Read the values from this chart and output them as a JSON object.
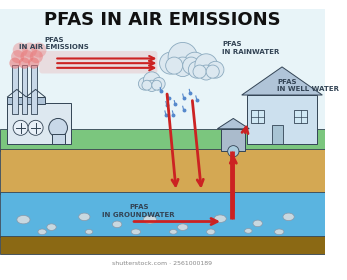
{
  "title": "PFAS IN AIR EMISSIONS",
  "title_fontsize": 13,
  "title_fontweight": "bold",
  "bg_color": "#ffffff",
  "labels": {
    "air_emissions": "PFAS\nIN AIR EMISSIONS",
    "rainwater": "PFAS\nIN RAINWATER",
    "well_water": "PFAS\nIN WELL WATER",
    "groundwater": "PFAS\nIN GROUNDWATER"
  },
  "colors": {
    "sky": "#e8f4f8",
    "grass": "#7bc67e",
    "soil": "#d4a853",
    "groundwater_blue": "#5ab4e0",
    "deep_soil": "#8b6914",
    "factory_wall": "#dde8f0",
    "factory_roof": "#b0c4d8",
    "chimney": "#c8d8e8",
    "smoke_red": "#e87070",
    "arrow_red": "#cc2222",
    "cloud_fill": "#dce8f0",
    "cloud_stroke": "#8baabf",
    "rain_blue": "#5588cc",
    "house_wall": "#cce0ee",
    "house_roof": "#b0c4d8",
    "well_gray": "#aabbcc",
    "rock_fill": "#c8d8e0",
    "rock_stroke": "#8899aa",
    "outline": "#334455",
    "label_color": "#334455"
  },
  "watermark": "shutterstock.com · 2561000189"
}
